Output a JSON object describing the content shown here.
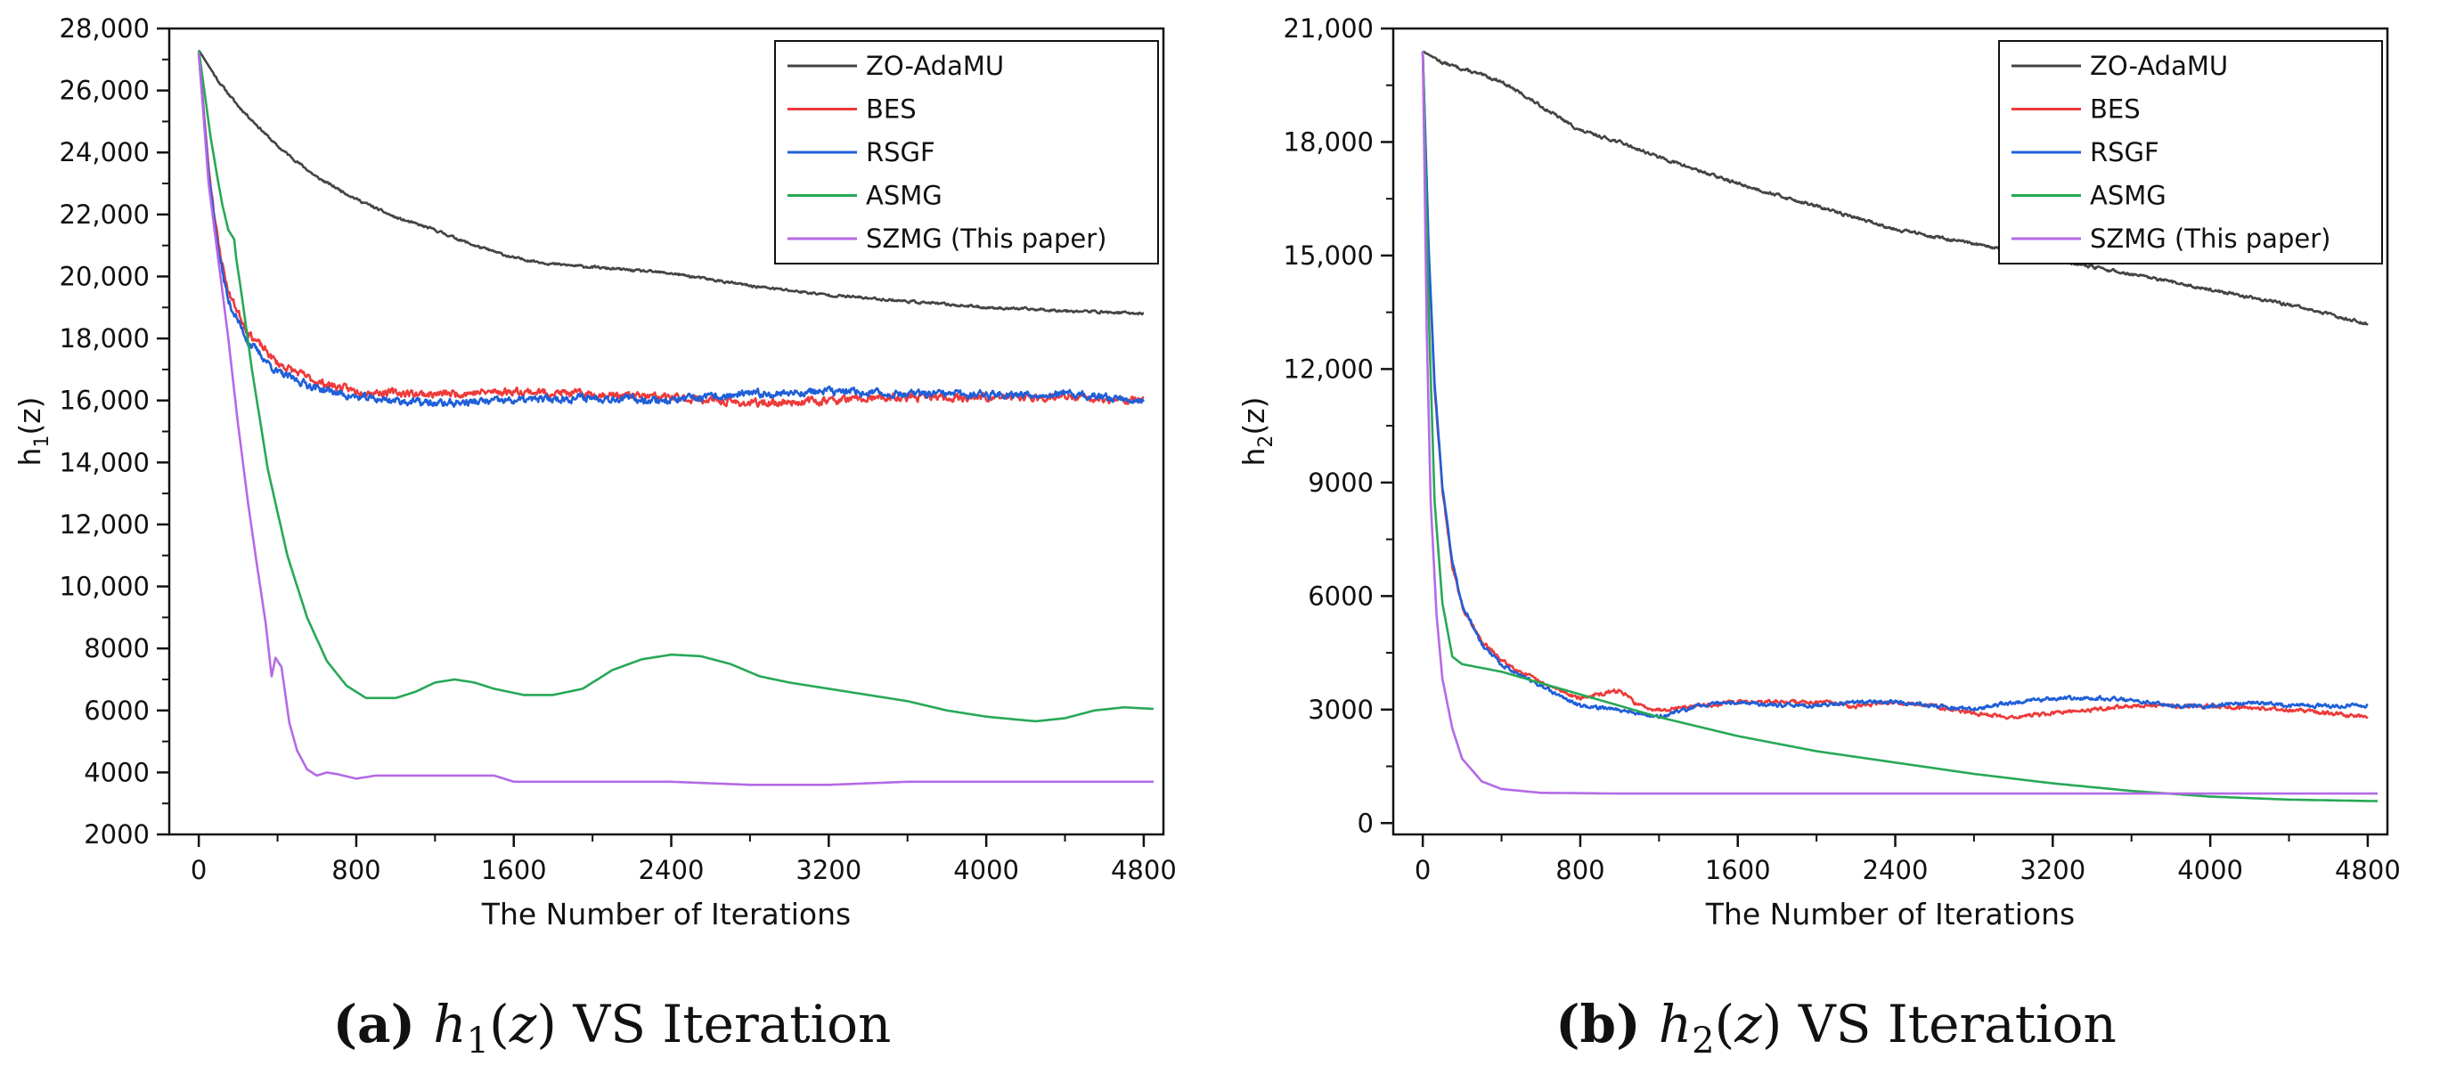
{
  "chart_data": [
    {
      "type": "line",
      "panel_letter": "(a)",
      "caption_func": "h",
      "caption_sub": "1",
      "caption_arg": "(z)",
      "caption_rest": "VS Iteration",
      "xlabel": "The Number of Iterations",
      "ylabel": "h1(z)",
      "ylabel_main": "h",
      "ylabel_sub": "1",
      "ylabel_rest": "(z)",
      "xlim": [
        -150,
        4900
      ],
      "ylim": [
        2000,
        28000
      ],
      "x_ticks": [
        0,
        800,
        1600,
        2400,
        3200,
        4000,
        4800
      ],
      "x_tick_labels": [
        "0",
        "800",
        "1600",
        "2400",
        "3200",
        "4000",
        "4800"
      ],
      "y_ticks": [
        2000,
        4000,
        6000,
        8000,
        10000,
        12000,
        14000,
        16000,
        18000,
        20000,
        22000,
        24000,
        26000,
        28000
      ],
      "y_tick_labels": [
        "2000",
        "4000",
        "6000",
        "8000",
        "10,000",
        "12,000",
        "14,000",
        "16,000",
        "18,000",
        "20,000",
        "22,000",
        "24,000",
        "26,000",
        "28,000"
      ],
      "legend_position": "top-right",
      "series": [
        {
          "name": "ZO-AdaMU",
          "color": "#444444",
          "noise": 70,
          "seed": 11,
          "points": [
            [
              0,
              27300
            ],
            [
              100,
              26300
            ],
            [
              200,
              25500
            ],
            [
              400,
              24200
            ],
            [
              600,
              23200
            ],
            [
              800,
              22500
            ],
            [
              1000,
              21900
            ],
            [
              1200,
              21500
            ],
            [
              1400,
              21000
            ],
            [
              1600,
              20600
            ],
            [
              1800,
              20400
            ],
            [
              2000,
              20300
            ],
            [
              2400,
              20100
            ],
            [
              2800,
              19700
            ],
            [
              3200,
              19400
            ],
            [
              3600,
              19200
            ],
            [
              4000,
              19000
            ],
            [
              4400,
              18900
            ],
            [
              4800,
              18800
            ]
          ]
        },
        {
          "name": "BES",
          "color": "#ee3a3a",
          "noise": 220,
          "seed": 23,
          "points": [
            [
              0,
              27200
            ],
            [
              50,
              23500
            ],
            [
              100,
              21000
            ],
            [
              150,
              19500
            ],
            [
              250,
              18200
            ],
            [
              400,
              17200
            ],
            [
              600,
              16600
            ],
            [
              800,
              16300
            ],
            [
              1200,
              16200
            ],
            [
              1600,
              16300
            ],
            [
              2000,
              16200
            ],
            [
              2400,
              16100
            ],
            [
              2800,
              15900
            ],
            [
              3200,
              16000
            ],
            [
              3600,
              16100
            ],
            [
              4000,
              16100
            ],
            [
              4400,
              16100
            ],
            [
              4800,
              16000
            ]
          ]
        },
        {
          "name": "RSGF",
          "color": "#1f5fd9",
          "noise": 220,
          "seed": 37,
          "points": [
            [
              0,
              27200
            ],
            [
              50,
              23300
            ],
            [
              100,
              20800
            ],
            [
              150,
              19200
            ],
            [
              250,
              17900
            ],
            [
              400,
              16900
            ],
            [
              600,
              16400
            ],
            [
              800,
              16100
            ],
            [
              1200,
              15900
            ],
            [
              1600,
              16000
            ],
            [
              2000,
              16100
            ],
            [
              2400,
              16000
            ],
            [
              2800,
              16200
            ],
            [
              3200,
              16300
            ],
            [
              3600,
              16200
            ],
            [
              4000,
              16200
            ],
            [
              4400,
              16200
            ],
            [
              4800,
              16000
            ]
          ]
        },
        {
          "name": "ASMG",
          "color": "#27a857",
          "noise": 0,
          "seed": 41,
          "points": [
            [
              0,
              27300
            ],
            [
              60,
              24500
            ],
            [
              100,
              23000
            ],
            [
              120,
              22300
            ],
            [
              150,
              21500
            ],
            [
              180,
              21200
            ],
            [
              190,
              20600
            ],
            [
              220,
              19300
            ],
            [
              270,
              17000
            ],
            [
              350,
              13800
            ],
            [
              450,
              11000
            ],
            [
              550,
              9000
            ],
            [
              650,
              7600
            ],
            [
              750,
              6800
            ],
            [
              850,
              6400
            ],
            [
              1000,
              6400
            ],
            [
              1100,
              6600
            ],
            [
              1200,
              6900
            ],
            [
              1300,
              7000
            ],
            [
              1400,
              6900
            ],
            [
              1500,
              6700
            ],
            [
              1650,
              6500
            ],
            [
              1800,
              6500
            ],
            [
              1950,
              6700
            ],
            [
              2100,
              7300
            ],
            [
              2250,
              7650
            ],
            [
              2400,
              7800
            ],
            [
              2550,
              7750
            ],
            [
              2700,
              7500
            ],
            [
              2850,
              7100
            ],
            [
              3000,
              6900
            ],
            [
              3200,
              6700
            ],
            [
              3400,
              6500
            ],
            [
              3600,
              6300
            ],
            [
              3800,
              6000
            ],
            [
              4000,
              5800
            ],
            [
              4250,
              5650
            ],
            [
              4400,
              5750
            ],
            [
              4550,
              6000
            ],
            [
              4700,
              6100
            ],
            [
              4850,
              6050
            ]
          ]
        },
        {
          "name": "SZMG (This paper)",
          "color": "#b46ae6",
          "noise": 0,
          "seed": 53,
          "points": [
            [
              0,
              27200
            ],
            [
              50,
              23000
            ],
            [
              100,
              20500
            ],
            [
              150,
              18000
            ],
            [
              200,
              15200
            ],
            [
              250,
              12700
            ],
            [
              300,
              10500
            ],
            [
              340,
              8800
            ],
            [
              370,
              7100
            ],
            [
              390,
              7700
            ],
            [
              420,
              7400
            ],
            [
              460,
              5600
            ],
            [
              500,
              4700
            ],
            [
              550,
              4100
            ],
            [
              600,
              3900
            ],
            [
              650,
              4000
            ],
            [
              700,
              3950
            ],
            [
              800,
              3800
            ],
            [
              900,
              3900
            ],
            [
              1200,
              3900
            ],
            [
              1500,
              3900
            ],
            [
              1600,
              3700
            ],
            [
              2000,
              3700
            ],
            [
              2400,
              3700
            ],
            [
              2800,
              3600
            ],
            [
              3200,
              3600
            ],
            [
              3600,
              3700
            ],
            [
              4000,
              3700
            ],
            [
              4400,
              3700
            ],
            [
              4850,
              3700
            ]
          ]
        }
      ]
    },
    {
      "type": "line",
      "panel_letter": "(b)",
      "caption_func": "h",
      "caption_sub": "2",
      "caption_arg": "(z)",
      "caption_rest": "VS Iteration",
      "xlabel": "The Number of Iterations",
      "ylabel": "h2(z)",
      "ylabel_main": "h",
      "ylabel_sub": "2",
      "ylabel_rest": "(z)",
      "xlim": [
        -150,
        4900
      ],
      "ylim": [
        -300,
        21000
      ],
      "x_ticks": [
        0,
        800,
        1600,
        2400,
        3200,
        4000,
        4800
      ],
      "x_tick_labels": [
        "0",
        "800",
        "1600",
        "2400",
        "3200",
        "4000",
        "4800"
      ],
      "y_ticks": [
        0,
        3000,
        6000,
        9000,
        12000,
        15000,
        18000,
        21000
      ],
      "y_tick_labels": [
        "0",
        "3000",
        "6000",
        "9000",
        "12,000",
        "15,000",
        "18,000",
        "21,000"
      ],
      "legend_position": "top-right",
      "series": [
        {
          "name": "ZO-AdaMU",
          "color": "#444444",
          "noise": 70,
          "seed": 13,
          "points": [
            [
              0,
              20400
            ],
            [
              100,
              20100
            ],
            [
              400,
              19600
            ],
            [
              800,
              18300
            ],
            [
              1000,
              18000
            ],
            [
              1200,
              17600
            ],
            [
              1600,
              16900
            ],
            [
              2000,
              16300
            ],
            [
              2400,
              15700
            ],
            [
              2800,
              15300
            ],
            [
              3200,
              14900
            ],
            [
              3600,
              14500
            ],
            [
              4000,
              14100
            ],
            [
              4400,
              13700
            ],
            [
              4800,
              13200
            ]
          ]
        },
        {
          "name": "BES",
          "color": "#ee3a3a",
          "noise": 90,
          "seed": 29,
          "points": [
            [
              0,
              20400
            ],
            [
              30,
              15000
            ],
            [
              60,
              11500
            ],
            [
              100,
              8800
            ],
            [
              150,
              6800
            ],
            [
              200,
              5700
            ],
            [
              300,
              4800
            ],
            [
              400,
              4300
            ],
            [
              600,
              3700
            ],
            [
              800,
              3300
            ],
            [
              1000,
              3500
            ],
            [
              1100,
              3100
            ],
            [
              1200,
              3000
            ],
            [
              1400,
              3100
            ],
            [
              1600,
              3200
            ],
            [
              1800,
              3200
            ],
            [
              2000,
              3200
            ],
            [
              2200,
              3100
            ],
            [
              2400,
              3200
            ],
            [
              2600,
              3100
            ],
            [
              2800,
              2900
            ],
            [
              3000,
              2800
            ],
            [
              3200,
              2900
            ],
            [
              3600,
              3100
            ],
            [
              4000,
              3100
            ],
            [
              4400,
              3000
            ],
            [
              4800,
              2800
            ]
          ]
        },
        {
          "name": "RSGF",
          "color": "#1f5fd9",
          "noise": 90,
          "seed": 43,
          "points": [
            [
              0,
              20400
            ],
            [
              30,
              15200
            ],
            [
              60,
              11600
            ],
            [
              100,
              8900
            ],
            [
              150,
              6900
            ],
            [
              200,
              5800
            ],
            [
              300,
              4700
            ],
            [
              400,
              4200
            ],
            [
              600,
              3600
            ],
            [
              800,
              3100
            ],
            [
              1000,
              3000
            ],
            [
              1200,
              2800
            ],
            [
              1400,
              3100
            ],
            [
              1600,
              3200
            ],
            [
              1800,
              3100
            ],
            [
              2000,
              3100
            ],
            [
              2200,
              3200
            ],
            [
              2400,
              3200
            ],
            [
              2600,
              3100
            ],
            [
              2800,
              3000
            ],
            [
              3000,
              3200
            ],
            [
              3200,
              3300
            ],
            [
              3500,
              3300
            ],
            [
              3800,
              3100
            ],
            [
              4000,
              3100
            ],
            [
              4200,
              3200
            ],
            [
              4400,
              3100
            ],
            [
              4800,
              3100
            ]
          ]
        },
        {
          "name": "ASMG",
          "color": "#27a857",
          "noise": 0,
          "seed": 47,
          "points": [
            [
              0,
              20400
            ],
            [
              30,
              13500
            ],
            [
              60,
              8500
            ],
            [
              100,
              5800
            ],
            [
              150,
              4400
            ],
            [
              200,
              4200
            ],
            [
              400,
              4000
            ],
            [
              800,
              3400
            ],
            [
              1200,
              2800
            ],
            [
              1600,
              2300
            ],
            [
              2000,
              1900
            ],
            [
              2400,
              1600
            ],
            [
              2800,
              1300
            ],
            [
              3200,
              1050
            ],
            [
              3600,
              850
            ],
            [
              4000,
              700
            ],
            [
              4400,
              620
            ],
            [
              4850,
              580
            ]
          ]
        },
        {
          "name": "SZMG (This paper)",
          "color": "#b46ae6",
          "noise": 0,
          "seed": 59,
          "points": [
            [
              0,
              20400
            ],
            [
              20,
              13000
            ],
            [
              40,
              8500
            ],
            [
              70,
              5500
            ],
            [
              100,
              3800
            ],
            [
              150,
              2500
            ],
            [
              200,
              1700
            ],
            [
              300,
              1100
            ],
            [
              400,
              900
            ],
            [
              600,
              800
            ],
            [
              1000,
              780
            ],
            [
              2000,
              780
            ],
            [
              3000,
              780
            ],
            [
              4000,
              780
            ],
            [
              4850,
              780
            ]
          ]
        }
      ]
    }
  ]
}
